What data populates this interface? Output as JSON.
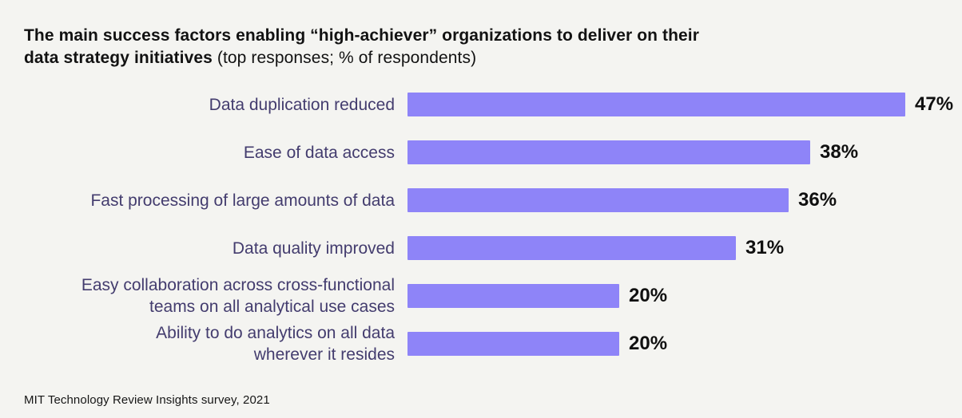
{
  "title": {
    "bold_line1": "The main success factors enabling “high-achiever” organizations to deliver on their",
    "bold_line2": "data strategy initiatives",
    "regular_suffix": " (top responses; % of respondents)"
  },
  "source": "MIT Technology Review Insights survey, 2021",
  "chart_data": {
    "type": "bar",
    "orientation": "horizontal",
    "title": "The main success factors enabling “high-achiever” organizations to deliver on their data strategy initiatives (top responses; % of respondents)",
    "categories": [
      "Data duplication reduced",
      "Ease of data access",
      "Fast processing of large amounts of data",
      "Data quality improved",
      "Easy collaboration across cross-functional teams on all analytical use cases",
      "Ability to do analytics on all data wherever it resides"
    ],
    "label_lines": [
      [
        "Data duplication reduced"
      ],
      [
        "Ease of data access"
      ],
      [
        "Fast processing of large amounts of data"
      ],
      [
        "Data quality improved"
      ],
      [
        "Easy collaboration across cross-functional",
        "teams on all analytical use cases"
      ],
      [
        "Ability to do analytics on all data",
        "wherever it resides"
      ]
    ],
    "values": [
      47,
      38,
      36,
      31,
      20,
      20
    ],
    "value_labels": [
      "47%",
      "38%",
      "36%",
      "31%",
      "20%",
      "20%"
    ],
    "xlim": [
      0,
      47
    ],
    "unit": "% of respondents",
    "grid": false,
    "legend": false,
    "bar_color": "#8e84f8",
    "label_color": "#433c6e",
    "value_color": "#101010",
    "background_color": "#f4f4f1"
  }
}
